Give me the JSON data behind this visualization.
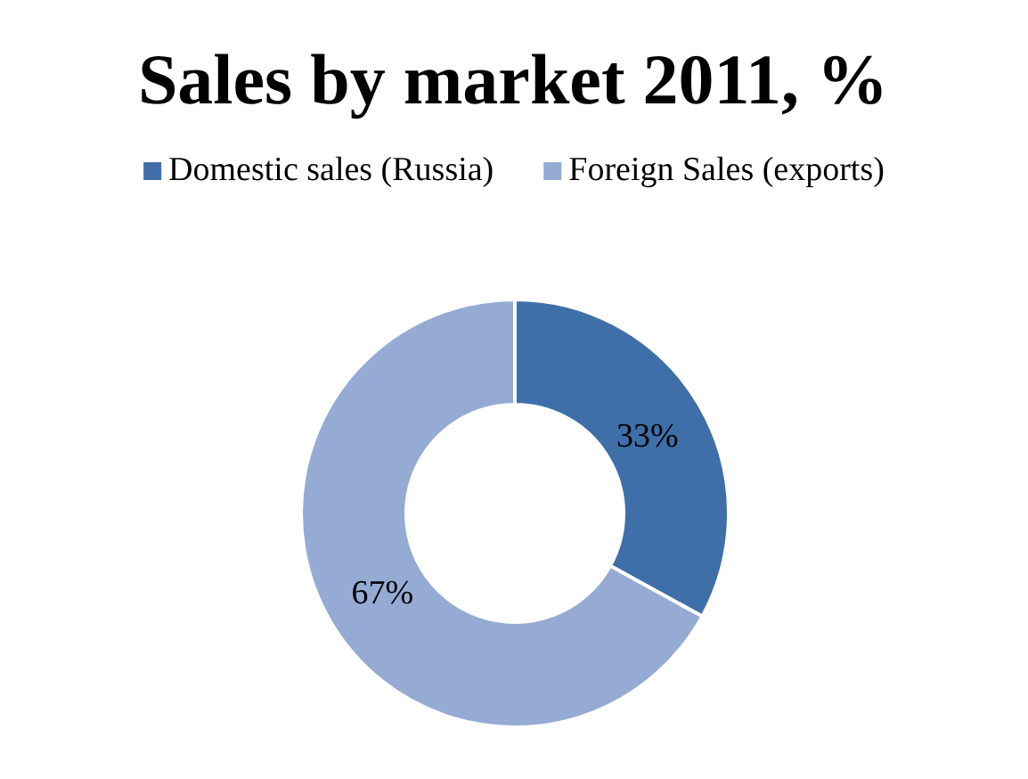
{
  "chart_data": {
    "type": "donut",
    "title": "Sales by market 2011, %",
    "categories": [
      "Domestic sales (Russia)",
      "Foreign Sales (exports)"
    ],
    "values": [
      33,
      67
    ],
    "colors": [
      "#3f6fa8",
      "#95abd3"
    ],
    "value_labels": [
      "33%",
      "67%"
    ],
    "legend": "top"
  }
}
